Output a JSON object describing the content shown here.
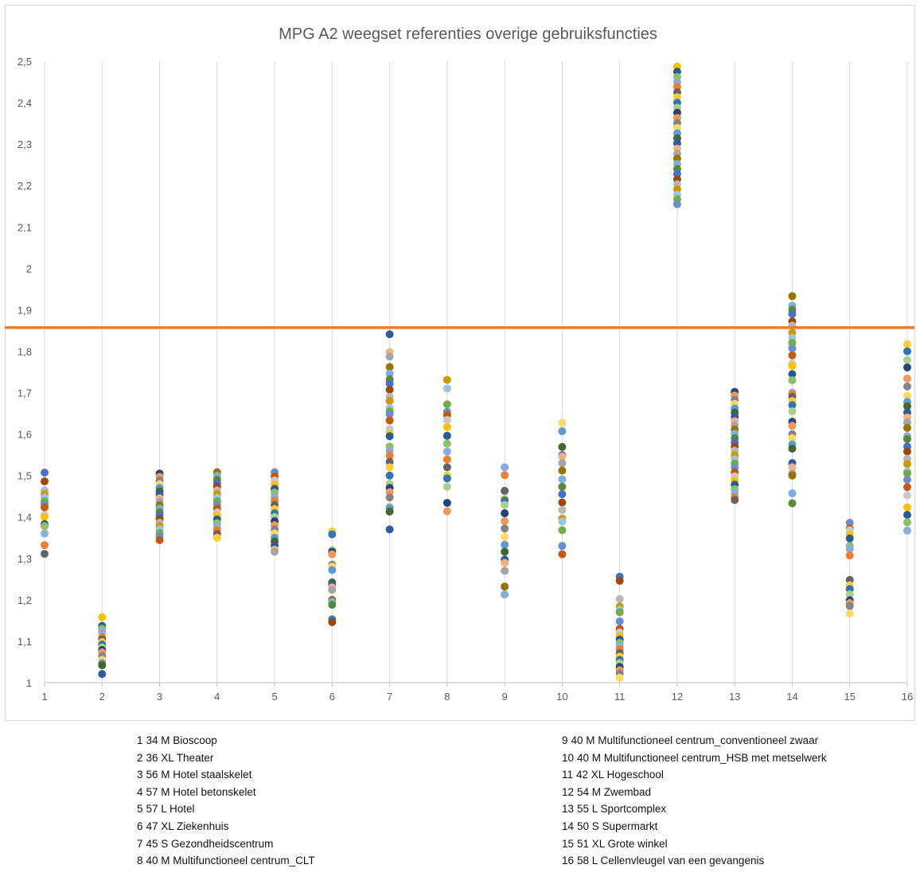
{
  "chart_data": {
    "type": "scatter",
    "title": "MPG A2 weegset referenties overige gebruiksfuncties",
    "xlabel": "",
    "ylabel": "",
    "categories": [
      "1",
      "2",
      "3",
      "4",
      "5",
      "6",
      "7",
      "8",
      "9",
      "10",
      "11",
      "12",
      "13",
      "14",
      "15",
      "16"
    ],
    "y_tick_labels": [
      "1",
      "1,1",
      "1,2",
      "1,3",
      "1,4",
      "1,5",
      "1,6",
      "1,7",
      "1,8",
      "1,9",
      "2",
      "2,1",
      "2,2",
      "2,3",
      "2,4",
      "2,5"
    ],
    "ylim": [
      1,
      2.5
    ],
    "grid": "vertical",
    "reference_line": {
      "y": 1.857,
      "color": "#ed7d31"
    },
    "palette": [
      "#4472c4",
      "#ed7d31",
      "#a5a5a5",
      "#ffc000",
      "#5b9bd5",
      "#70ad47",
      "#264478",
      "#9e480e",
      "#636363",
      "#997300",
      "#255e91",
      "#43682b",
      "#698ed0",
      "#f1975a",
      "#b7b7b7",
      "#ffcd33",
      "#7cafdd",
      "#8cc168",
      "#335aa1",
      "#c65911",
      "#848484",
      "#cc9a00",
      "#3275b5",
      "#5a8a39",
      "#8faadc",
      "#f4b183",
      "#c9c9c9",
      "#ffd966",
      "#9dc3e6",
      "#a9d18e"
    ],
    "values": [
      [
        1.507,
        1.486,
        1.464,
        1.455,
        1.447,
        1.438,
        1.431,
        1.423,
        1.405,
        1.4,
        1.383,
        1.378,
        1.36,
        1.332,
        1.311
      ],
      [
        1.158,
        1.137,
        1.13,
        1.123,
        1.11,
        1.104,
        1.098,
        1.092,
        1.085,
        1.079,
        1.073,
        1.064,
        1.055,
        1.047,
        1.042,
        1.021
      ],
      [
        1.505,
        1.497,
        1.488,
        1.479,
        1.47,
        1.462,
        1.454,
        1.445,
        1.437,
        1.428,
        1.42,
        1.411,
        1.403,
        1.395,
        1.386,
        1.378,
        1.37,
        1.361,
        1.353,
        1.344
      ],
      [
        1.508,
        1.499,
        1.49,
        1.481,
        1.473,
        1.464,
        1.455,
        1.446,
        1.438,
        1.429,
        1.42,
        1.411,
        1.403,
        1.394,
        1.385,
        1.376,
        1.368,
        1.359,
        1.35
      ],
      [
        1.508,
        1.498,
        1.488,
        1.478,
        1.468,
        1.459,
        1.449,
        1.439,
        1.429,
        1.419,
        1.409,
        1.4,
        1.39,
        1.38,
        1.37,
        1.36,
        1.35,
        1.341,
        1.331,
        1.321,
        1.316
      ],
      [
        1.365,
        1.358,
        1.32,
        1.316,
        1.31,
        1.285,
        1.28,
        1.272,
        1.242,
        1.236,
        1.23,
        1.224,
        1.2,
        1.195,
        1.188,
        1.153,
        1.146
      ],
      [
        1.841,
        1.798,
        1.787,
        1.762,
        1.746,
        1.732,
        1.722,
        1.707,
        1.69,
        1.68,
        1.663,
        1.655,
        1.648,
        1.633,
        1.612,
        1.6,
        1.595,
        1.57,
        1.56,
        1.548,
        1.533,
        1.52,
        1.5,
        1.48,
        1.47,
        1.46,
        1.447,
        1.425,
        1.422,
        1.413,
        1.37
      ],
      [
        1.731,
        1.71,
        1.672,
        1.654,
        1.646,
        1.634,
        1.617,
        1.596,
        1.577,
        1.558,
        1.539,
        1.52,
        1.5,
        1.493,
        1.473,
        1.434,
        1.414
      ],
      [
        1.52,
        1.501,
        1.463,
        1.444,
        1.44,
        1.429,
        1.409,
        1.39,
        1.372,
        1.352,
        1.333,
        1.316,
        1.297,
        1.289,
        1.27,
        1.232,
        1.213
      ],
      [
        1.627,
        1.607,
        1.569,
        1.549,
        1.546,
        1.53,
        1.512,
        1.491,
        1.473,
        1.455,
        1.435,
        1.417,
        1.396,
        1.389,
        1.368,
        1.33,
        1.31
      ],
      [
        1.256,
        1.246,
        1.202,
        1.184,
        1.176,
        1.17,
        1.148,
        1.13,
        1.121,
        1.112,
        1.104,
        1.096,
        1.088,
        1.08,
        1.071,
        1.063,
        1.055,
        1.047,
        1.038,
        1.03,
        1.022,
        1.012
      ],
      [
        2.487,
        2.475,
        2.462,
        2.45,
        2.438,
        2.425,
        2.413,
        2.4,
        2.388,
        2.376,
        2.363,
        2.351,
        2.339,
        2.326,
        2.314,
        2.302,
        2.289,
        2.277,
        2.265,
        2.252,
        2.24,
        2.228,
        2.215,
        2.203,
        2.191,
        2.178,
        2.167,
        2.155
      ],
      [
        1.702,
        1.693,
        1.683,
        1.673,
        1.662,
        1.652,
        1.642,
        1.631,
        1.621,
        1.611,
        1.601,
        1.59,
        1.58,
        1.57,
        1.56,
        1.549,
        1.539,
        1.529,
        1.519,
        1.508,
        1.498,
        1.488,
        1.478,
        1.467,
        1.457,
        1.447,
        1.441
      ],
      [
        1.933,
        1.91,
        1.9,
        1.89,
        1.872,
        1.862,
        1.845,
        1.832,
        1.82,
        1.807,
        1.79,
        1.77,
        1.765,
        1.745,
        1.73,
        1.7,
        1.696,
        1.69,
        1.68,
        1.67,
        1.655,
        1.63,
        1.62,
        1.6,
        1.59,
        1.575,
        1.565,
        1.53,
        1.52,
        1.505,
        1.5,
        1.457,
        1.433
      ],
      [
        1.386,
        1.372,
        1.368,
        1.358,
        1.348,
        1.33,
        1.323,
        1.307,
        1.248,
        1.235,
        1.226,
        1.213,
        1.199,
        1.192,
        1.185,
        1.167
      ],
      [
        1.817,
        1.8,
        1.779,
        1.761,
        1.734,
        1.715,
        1.693,
        1.678,
        1.667,
        1.652,
        1.64,
        1.628,
        1.615,
        1.595,
        1.588,
        1.57,
        1.558,
        1.54,
        1.528,
        1.51,
        1.505,
        1.49,
        1.472,
        1.452,
        1.423,
        1.405,
        1.387,
        1.367
      ]
    ]
  },
  "legend": {
    "left": [
      {
        "num": "1",
        "label": "34 M Bioscoop"
      },
      {
        "num": "2",
        "label": "36 XL Theater"
      },
      {
        "num": "3",
        "label": "56 M Hotel staalskelet"
      },
      {
        "num": "4",
        "label": "57 M Hotel betonskelet"
      },
      {
        "num": "5",
        "label": "57 L Hotel"
      },
      {
        "num": "6",
        "label": "47 XL Ziekenhuis"
      },
      {
        "num": "7",
        "label": "45 S Gezondheidscentrum"
      },
      {
        "num": "8",
        "label": "40 M Multifunctioneel centrum_CLT"
      }
    ],
    "right": [
      {
        "num": "9",
        "label": "40 M Multifunctioneel centrum_conventioneel zwaar"
      },
      {
        "num": "10",
        "label": "40 M Multifunctioneel centrum_HSB met metselwerk"
      },
      {
        "num": "11",
        "label": "42 XL Hogeschool"
      },
      {
        "num": "12",
        "label": "54 M Zwembad"
      },
      {
        "num": "13",
        "label": "55 L Sportcomplex"
      },
      {
        "num": "14",
        "label": "50 S Supermarkt"
      },
      {
        "num": "15",
        "label": "51 XL Grote winkel"
      },
      {
        "num": "16",
        "label": "58 L Cellenvleugel van een gevangenis"
      }
    ]
  }
}
